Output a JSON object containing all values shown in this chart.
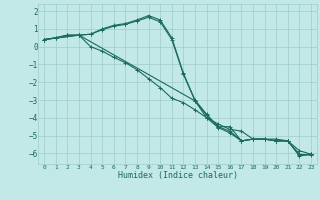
{
  "xlabel": "Humidex (Indice chaleur)",
  "background_color": "#c2e8e8",
  "grid_color": "#a0cccc",
  "line_color": "#1a6b5a",
  "xlim": [
    -0.5,
    23.5
  ],
  "ylim": [
    -6.6,
    2.4
  ],
  "xticks": [
    0,
    1,
    2,
    3,
    4,
    5,
    6,
    7,
    8,
    9,
    10,
    11,
    12,
    13,
    14,
    15,
    16,
    17,
    18,
    19,
    20,
    21,
    22,
    23
  ],
  "yticks": [
    -6,
    -5,
    -4,
    -3,
    -2,
    -1,
    0,
    1,
    2
  ],
  "line1_x": [
    0,
    1,
    2,
    3,
    4,
    5,
    6,
    7,
    8,
    9,
    10,
    11,
    12,
    13,
    14,
    15,
    16,
    17,
    18,
    19,
    20,
    21,
    22,
    23
  ],
  "line1_y": [
    0.4,
    0.5,
    0.65,
    0.65,
    0.7,
    1.0,
    1.2,
    1.3,
    1.5,
    1.75,
    1.5,
    0.5,
    -1.5,
    -3.0,
    -3.8,
    -4.5,
    -4.75,
    -5.3,
    -5.2,
    -5.2,
    -5.3,
    -5.3,
    -6.15,
    -6.05
  ],
  "line2_x": [
    0,
    1,
    2,
    3,
    4,
    5,
    6,
    7,
    8,
    9,
    10,
    11,
    12,
    13,
    14,
    15,
    16,
    17,
    18,
    19,
    20,
    21,
    22,
    23
  ],
  "line2_y": [
    0.4,
    0.5,
    0.65,
    0.65,
    0.7,
    0.95,
    1.15,
    1.25,
    1.45,
    1.65,
    1.4,
    0.4,
    -1.55,
    -3.05,
    -4.0,
    -4.55,
    -4.85,
    -5.3,
    -5.2,
    -5.2,
    -5.3,
    -5.3,
    -6.05,
    -6.1
  ],
  "line3_x": [
    0,
    3,
    4,
    5,
    6,
    7,
    8,
    9,
    10,
    11,
    12,
    13,
    14,
    15,
    16,
    17,
    18,
    19,
    20,
    21,
    22,
    23
  ],
  "line3_y": [
    0.4,
    0.65,
    0.0,
    -0.25,
    -0.6,
    -0.9,
    -1.3,
    -1.8,
    -2.3,
    -2.9,
    -3.15,
    -3.55,
    -4.0,
    -4.35,
    -4.65,
    -4.75,
    -5.2,
    -5.2,
    -5.2,
    -5.3,
    -6.1,
    -6.05
  ],
  "line4_x": [
    0,
    3,
    13,
    14,
    15,
    16,
    17,
    18,
    19,
    20,
    21,
    22,
    23
  ],
  "line4_y": [
    0.4,
    0.65,
    -3.05,
    -3.85,
    -4.5,
    -4.5,
    -5.3,
    -5.2,
    -5.2,
    -5.3,
    -5.3,
    -5.85,
    -6.05
  ]
}
